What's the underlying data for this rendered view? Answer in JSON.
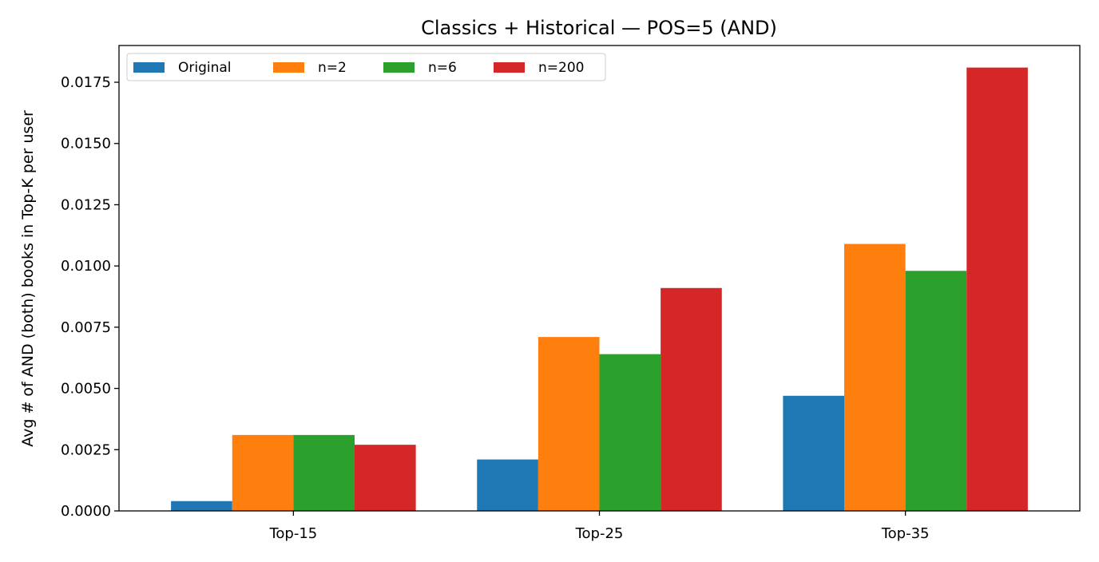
{
  "chart_data": {
    "type": "bar",
    "title": "Classics + Historical — POS=5 (AND)",
    "xlabel": "",
    "ylabel": "Avg # of AND (both) books in Top-K per user",
    "categories": [
      "Top-15",
      "Top-25",
      "Top-35"
    ],
    "series": [
      {
        "name": "Original",
        "color": "#1f77b4",
        "values": [
          0.0004,
          0.0021,
          0.0047
        ]
      },
      {
        "name": "n=2",
        "color": "#ff7f0e",
        "values": [
          0.0031,
          0.0071,
          0.0109
        ]
      },
      {
        "name": "n=6",
        "color": "#2ca02c",
        "values": [
          0.0031,
          0.0064,
          0.0098
        ]
      },
      {
        "name": "n=200",
        "color": "#d62728",
        "values": [
          0.0027,
          0.0091,
          0.0181
        ]
      }
    ],
    "ylim": [
      0,
      0.019
    ],
    "yticks": [
      "0.0000",
      "0.0025",
      "0.0050",
      "0.0075",
      "0.0100",
      "0.0125",
      "0.0150",
      "0.0175"
    ],
    "grid": false,
    "legend_position": "top-left"
  }
}
